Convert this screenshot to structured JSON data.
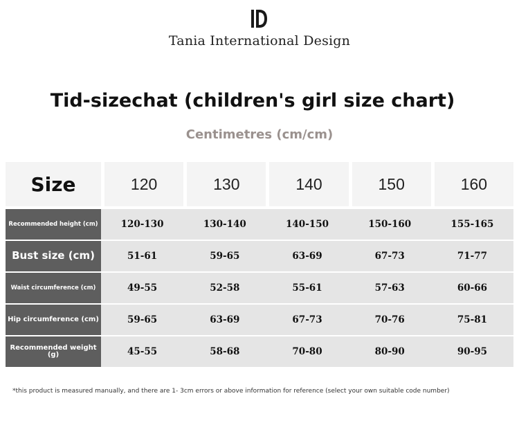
{
  "brand": {
    "logo_icon": "ti-monogram-logo",
    "name": "Tania International Design"
  },
  "title": "Tid-sizechat (children's girl size chart)",
  "subtitle": "Centimetres (cm/cm)",
  "table": {
    "header_label": "Size",
    "sizes": [
      "120",
      "130",
      "140",
      "150",
      "160"
    ],
    "rows": [
      {
        "label": "Recommended height (cm)",
        "values": [
          "120-130",
          "130-140",
          "140-150",
          "150-160",
          "155-165"
        ]
      },
      {
        "label": "Bust size (cm)",
        "values": [
          "51-61",
          "59-65",
          "63-69",
          "67-73",
          "71-77"
        ]
      },
      {
        "label": "Waist circumference (cm)",
        "values": [
          "49-55",
          "52-58",
          "55-61",
          "57-63",
          "60-66"
        ]
      },
      {
        "label": "Hip circumference (cm)",
        "values": [
          "59-65",
          "63-69",
          "67-73",
          "70-76",
          "75-81"
        ]
      },
      {
        "label": "Recommended weight (g)",
        "values": [
          "45-55",
          "58-68",
          "70-80",
          "80-90",
          "90-95"
        ]
      }
    ]
  },
  "footnote": "*this product is measured manually, and there are 1- 3cm errors or above information for reference (select your own suitable code number)",
  "colors": {
    "label_bg": "#5e5e5e",
    "cell_bg": "#e5e5e5",
    "header_bg": "#f4f4f4",
    "subtitle": "#9a918e"
  }
}
